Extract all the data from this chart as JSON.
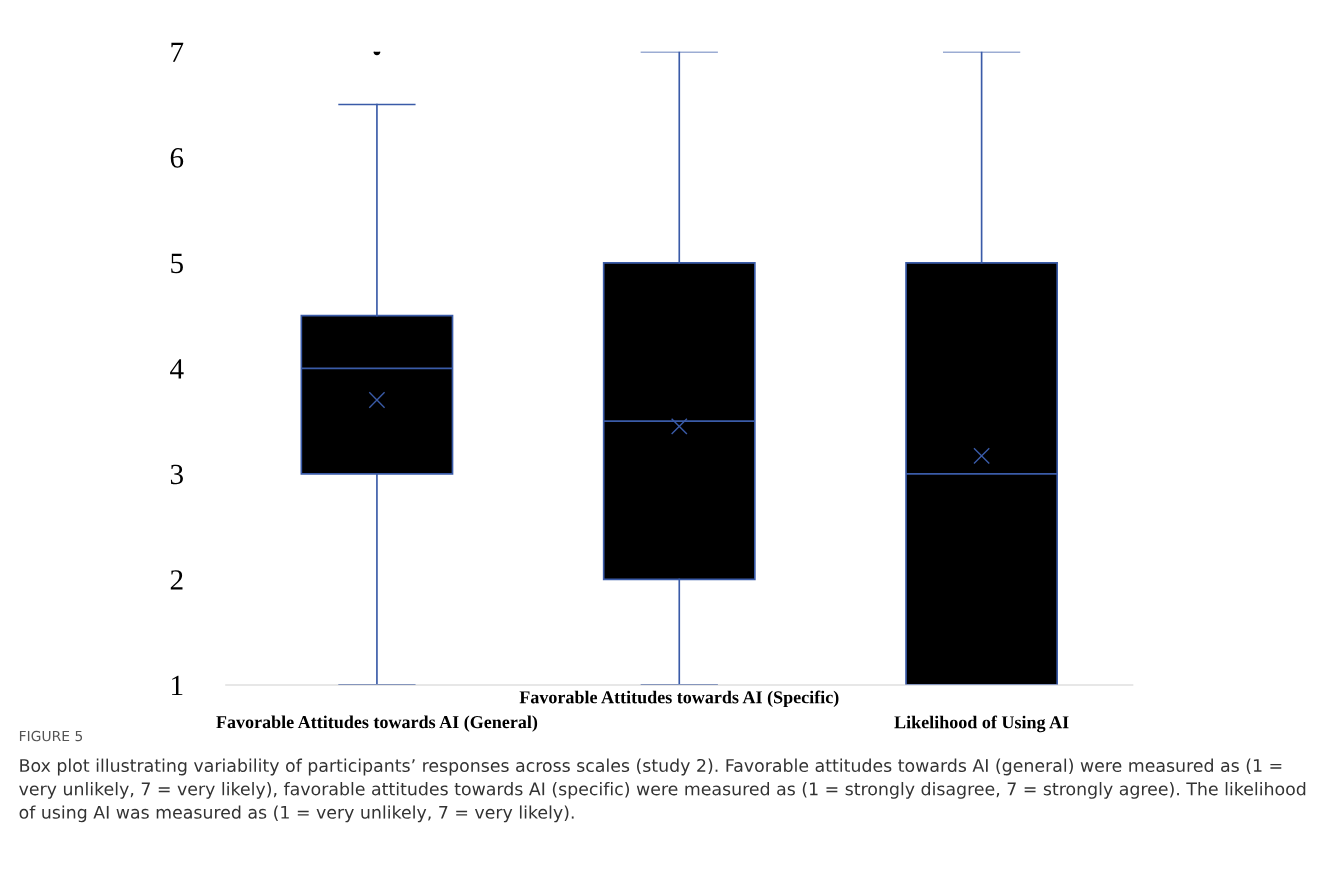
{
  "chart_data": {
    "type": "box",
    "categories": [
      "Favorable Attitudes towards AI (General)",
      "Favorable Attitudes towards AI (Specific)",
      "Likelihood of Using AI"
    ],
    "series": [
      {
        "color": "#000000",
        "boxes": [
          {
            "low": 1,
            "q1": 3,
            "median": 4,
            "q3": 4.5,
            "high": 6.5,
            "mean": 3.7,
            "outliers": [
              7
            ]
          },
          {
            "low": 1,
            "q1": 2,
            "median": 3.5,
            "q3": 5,
            "high": 7,
            "mean": 3.45
          },
          {
            "low": 1,
            "q1": 1,
            "median": 3,
            "q3": 5,
            "high": 7,
            "mean": 3.17
          }
        ]
      }
    ],
    "ylim": [
      1,
      7
    ],
    "yticks": [
      1,
      2,
      3,
      4,
      5,
      6,
      7
    ],
    "marker": "cross",
    "annotations": [
      "FIGURE 5",
      "Box plot illustrating variability of participants’ responses across scales (study 2). Favorable attitudes towards AI (general) were measured as (1 = very unlikely, 7 = very likely), favorable attitudes towards AI (specific) were measured as (1 = strongly disagree, 7 = strongly agree). The likelihood of using AI was measured as (1 = very unlikely, 7 = very likely)."
    ]
  }
}
